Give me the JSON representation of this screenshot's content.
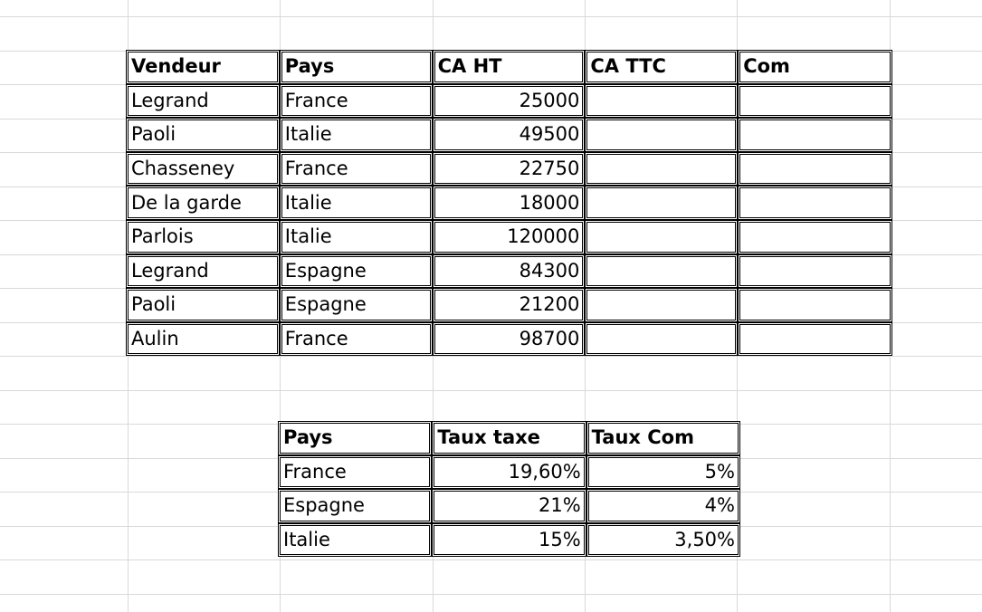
{
  "sales_table": {
    "headers": [
      "Vendeur",
      "Pays",
      "CA HT",
      "CA TTC",
      "Com"
    ],
    "rows": [
      {
        "vendeur": "Legrand",
        "pays": "France",
        "ca_ht": "25000",
        "ca_ttc": "",
        "com": ""
      },
      {
        "vendeur": "Paoli",
        "pays": "Italie",
        "ca_ht": "49500",
        "ca_ttc": "",
        "com": ""
      },
      {
        "vendeur": "Chasseney",
        "pays": "France",
        "ca_ht": "22750",
        "ca_ttc": "",
        "com": ""
      },
      {
        "vendeur": "De la garde",
        "pays": "Italie",
        "ca_ht": "18000",
        "ca_ttc": "",
        "com": ""
      },
      {
        "vendeur": "Parlois",
        "pays": "Italie",
        "ca_ht": "120000",
        "ca_ttc": "",
        "com": ""
      },
      {
        "vendeur": "Legrand",
        "pays": "Espagne",
        "ca_ht": "84300",
        "ca_ttc": "",
        "com": ""
      },
      {
        "vendeur": "Paoli",
        "pays": "Espagne",
        "ca_ht": "21200",
        "ca_ttc": "",
        "com": ""
      },
      {
        "vendeur": "Aulin",
        "pays": "France",
        "ca_ht": "98700",
        "ca_ttc": "",
        "com": ""
      }
    ]
  },
  "rates_table": {
    "headers": [
      "Pays",
      "Taux taxe",
      "Taux Com"
    ],
    "rows": [
      {
        "pays": "France",
        "taux_taxe": "19,60%",
        "taux_com": "5%"
      },
      {
        "pays": "Espagne",
        "taux_taxe": "21%",
        "taux_com": "4%"
      },
      {
        "pays": "Italie",
        "taux_taxe": "15%",
        "taux_com": "3,50%"
      }
    ]
  },
  "colors": {
    "gridline": "#d9d9d9",
    "border": "#000000",
    "text": "#000000"
  }
}
